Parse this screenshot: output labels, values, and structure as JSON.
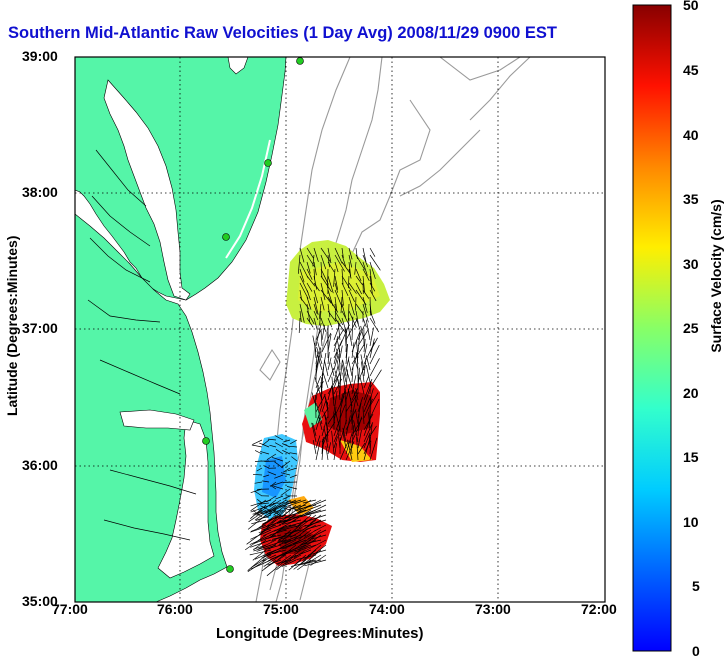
{
  "title": "Southern Mid-Atlantic Raw Velocities (1 Day Avg) 2008/11/29 0900 EST",
  "xlabel": "Longitude (Degrees:Minutes)",
  "ylabel": "Latitude (Degrees:Minutes)",
  "x_ticks": [
    "77:00",
    "76:00",
    "75:00",
    "74:00",
    "73:00",
    "72:00"
  ],
  "y_ticks": [
    "39:00",
    "38:00",
    "37:00",
    "36:00",
    "35:00"
  ],
  "colorbar": {
    "label": "Surface Velocity (cm/s)",
    "ticks": [
      "50",
      "45",
      "40",
      "35",
      "30",
      "25",
      "20",
      "15",
      "10",
      "5",
      "0"
    ],
    "min": 0,
    "max": 50
  },
  "colors": {
    "land": "#55f5a8",
    "title": "#1010d0",
    "bathymetry": "#9a9a9a",
    "grid": "#000000"
  },
  "chart_data": {
    "type": "map",
    "lon_range": [
      -77,
      -72
    ],
    "lat_range": [
      35,
      39
    ],
    "units": "cm/s",
    "velocity_patches": [
      {
        "region": "off Virginia, near 37:15N 74:45W",
        "speed_cm_s": 26
      },
      {
        "region": "near 36:25N 74:25W",
        "speed_cm_s": 45
      },
      {
        "region": "near 35:55N 75:15W",
        "speed_cm_s": 10
      },
      {
        "region": "near 35:28N 75:05W",
        "speed_cm_s": 42
      }
    ]
  }
}
